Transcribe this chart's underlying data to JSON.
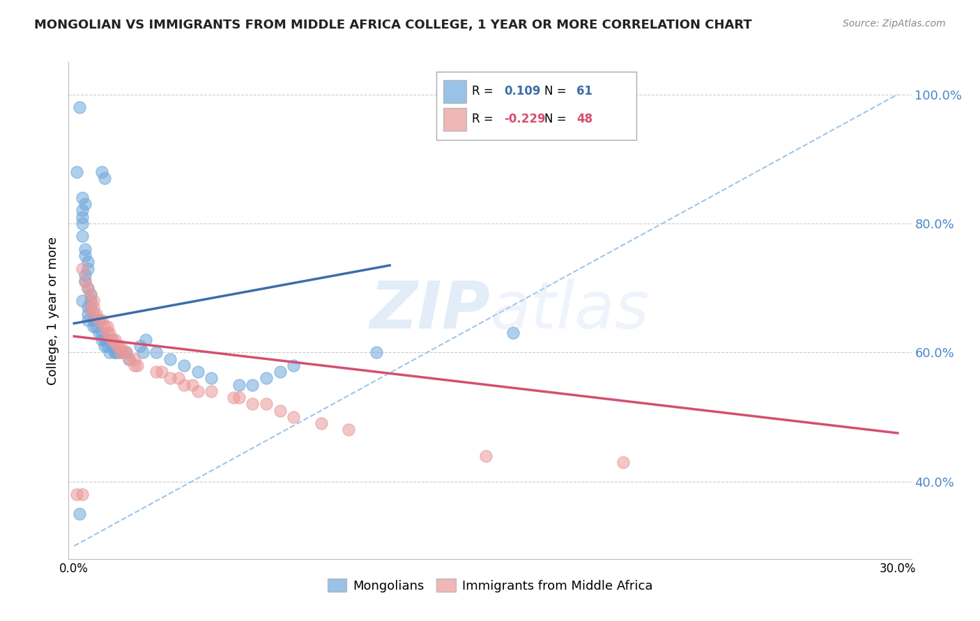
{
  "title": "MONGOLIAN VS IMMIGRANTS FROM MIDDLE AFRICA COLLEGE, 1 YEAR OR MORE CORRELATION CHART",
  "source": "Source: ZipAtlas.com",
  "ylabel": "College, 1 year or more",
  "xlim": [
    -0.002,
    0.305
  ],
  "ylim": [
    0.28,
    1.05
  ],
  "right_yticks": [
    0.4,
    0.6,
    0.8,
    1.0
  ],
  "right_yticklabels": [
    "40.0%",
    "60.0%",
    "80.0%",
    "100.0%"
  ],
  "xticks": [
    0.0,
    0.05,
    0.1,
    0.15,
    0.2,
    0.25,
    0.3
  ],
  "xticklabels": [
    "0.0%",
    "",
    "",
    "",
    "",
    "",
    "30.0%"
  ],
  "blue_color": "#6fa8dc",
  "pink_color": "#ea9999",
  "blue_line_color": "#3d6da8",
  "pink_line_color": "#d44f6e",
  "dashed_line_color": "#9fc5e8",
  "legend_R_blue": "0.109",
  "legend_N_blue": "61",
  "legend_R_pink": "-0.229",
  "legend_N_pink": "48",
  "blue_scatter_x": [
    0.002,
    0.001,
    0.01,
    0.011,
    0.003,
    0.004,
    0.003,
    0.003,
    0.003,
    0.003,
    0.004,
    0.004,
    0.005,
    0.005,
    0.004,
    0.004,
    0.005,
    0.006,
    0.003,
    0.006,
    0.005,
    0.006,
    0.007,
    0.005,
    0.005,
    0.007,
    0.008,
    0.009,
    0.007,
    0.008,
    0.009,
    0.01,
    0.01,
    0.011,
    0.012,
    0.011,
    0.012,
    0.014,
    0.013,
    0.015,
    0.015,
    0.016,
    0.019,
    0.017,
    0.02,
    0.025,
    0.024,
    0.026,
    0.03,
    0.035,
    0.04,
    0.045,
    0.05,
    0.06,
    0.065,
    0.07,
    0.075,
    0.08,
    0.11,
    0.16,
    0.002
  ],
  "blue_scatter_y": [
    0.98,
    0.88,
    0.88,
    0.87,
    0.84,
    0.83,
    0.82,
    0.81,
    0.8,
    0.78,
    0.76,
    0.75,
    0.74,
    0.73,
    0.72,
    0.71,
    0.7,
    0.69,
    0.68,
    0.68,
    0.67,
    0.67,
    0.66,
    0.66,
    0.65,
    0.65,
    0.65,
    0.65,
    0.64,
    0.64,
    0.63,
    0.63,
    0.62,
    0.62,
    0.62,
    0.61,
    0.61,
    0.61,
    0.6,
    0.6,
    0.6,
    0.6,
    0.6,
    0.6,
    0.59,
    0.6,
    0.61,
    0.62,
    0.6,
    0.59,
    0.58,
    0.57,
    0.56,
    0.55,
    0.55,
    0.56,
    0.57,
    0.58,
    0.6,
    0.63,
    0.35
  ],
  "pink_scatter_x": [
    0.003,
    0.004,
    0.005,
    0.006,
    0.007,
    0.006,
    0.007,
    0.007,
    0.008,
    0.009,
    0.01,
    0.011,
    0.012,
    0.012,
    0.013,
    0.014,
    0.014,
    0.015,
    0.016,
    0.017,
    0.016,
    0.017,
    0.018,
    0.019,
    0.02,
    0.022,
    0.022,
    0.023,
    0.03,
    0.032,
    0.035,
    0.038,
    0.04,
    0.043,
    0.045,
    0.05,
    0.058,
    0.06,
    0.065,
    0.07,
    0.075,
    0.08,
    0.09,
    0.1,
    0.15,
    0.2,
    0.003,
    0.001
  ],
  "pink_scatter_y": [
    0.73,
    0.71,
    0.7,
    0.69,
    0.68,
    0.67,
    0.67,
    0.66,
    0.66,
    0.65,
    0.65,
    0.64,
    0.64,
    0.63,
    0.63,
    0.62,
    0.62,
    0.62,
    0.61,
    0.61,
    0.61,
    0.6,
    0.6,
    0.6,
    0.59,
    0.59,
    0.58,
    0.58,
    0.57,
    0.57,
    0.56,
    0.56,
    0.55,
    0.55,
    0.54,
    0.54,
    0.53,
    0.53,
    0.52,
    0.52,
    0.51,
    0.5,
    0.49,
    0.48,
    0.44,
    0.43,
    0.38,
    0.38
  ],
  "blue_trend_x": [
    0.0,
    0.115
  ],
  "blue_trend_y": [
    0.645,
    0.735
  ],
  "pink_trend_x": [
    0.0,
    0.3
  ],
  "pink_trend_y": [
    0.625,
    0.475
  ],
  "diag_line_x": [
    0.0,
    0.3
  ],
  "diag_line_y": [
    0.3,
    1.0
  ]
}
